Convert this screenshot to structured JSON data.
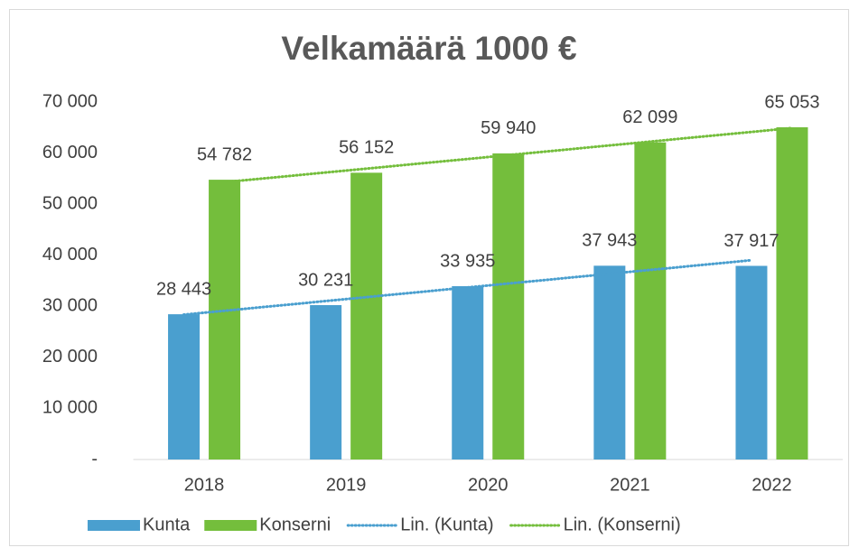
{
  "chart_data": {
    "type": "bar",
    "title": "Velkamäärä 1000 €",
    "categories": [
      "2018",
      "2019",
      "2020",
      "2021",
      "2022"
    ],
    "series": [
      {
        "name": "Kunta",
        "color": "#4a9fcf",
        "values": [
          28443,
          30231,
          33935,
          37943,
          37917
        ],
        "value_labels": [
          "28 443",
          "30 231",
          "33 935",
          "37 943",
          "37 917"
        ],
        "trendline": {
          "name": "Lin. (Kunta)",
          "color": "#4a9fcf"
        }
      },
      {
        "name": "Konserni",
        "color": "#74be3c",
        "values": [
          54782,
          56152,
          59940,
          62099,
          65053
        ],
        "value_labels": [
          "54 782",
          "56 152",
          "59 940",
          "62 099",
          "65 053"
        ],
        "trendline": {
          "name": "Lin. (Konserni)",
          "color": "#74be3c"
        }
      }
    ],
    "ylim": [
      0,
      70000
    ],
    "yticks": [
      {
        "value": 0,
        "label": "-"
      },
      {
        "value": 10000,
        "label": "10 000"
      },
      {
        "value": 20000,
        "label": "20 000"
      },
      {
        "value": 30000,
        "label": "30 000"
      },
      {
        "value": 40000,
        "label": "40 000"
      },
      {
        "value": 50000,
        "label": "50 000"
      },
      {
        "value": 60000,
        "label": "60 000"
      },
      {
        "value": 70000,
        "label": "70 000"
      }
    ],
    "grid": false,
    "legend": "bottom"
  }
}
